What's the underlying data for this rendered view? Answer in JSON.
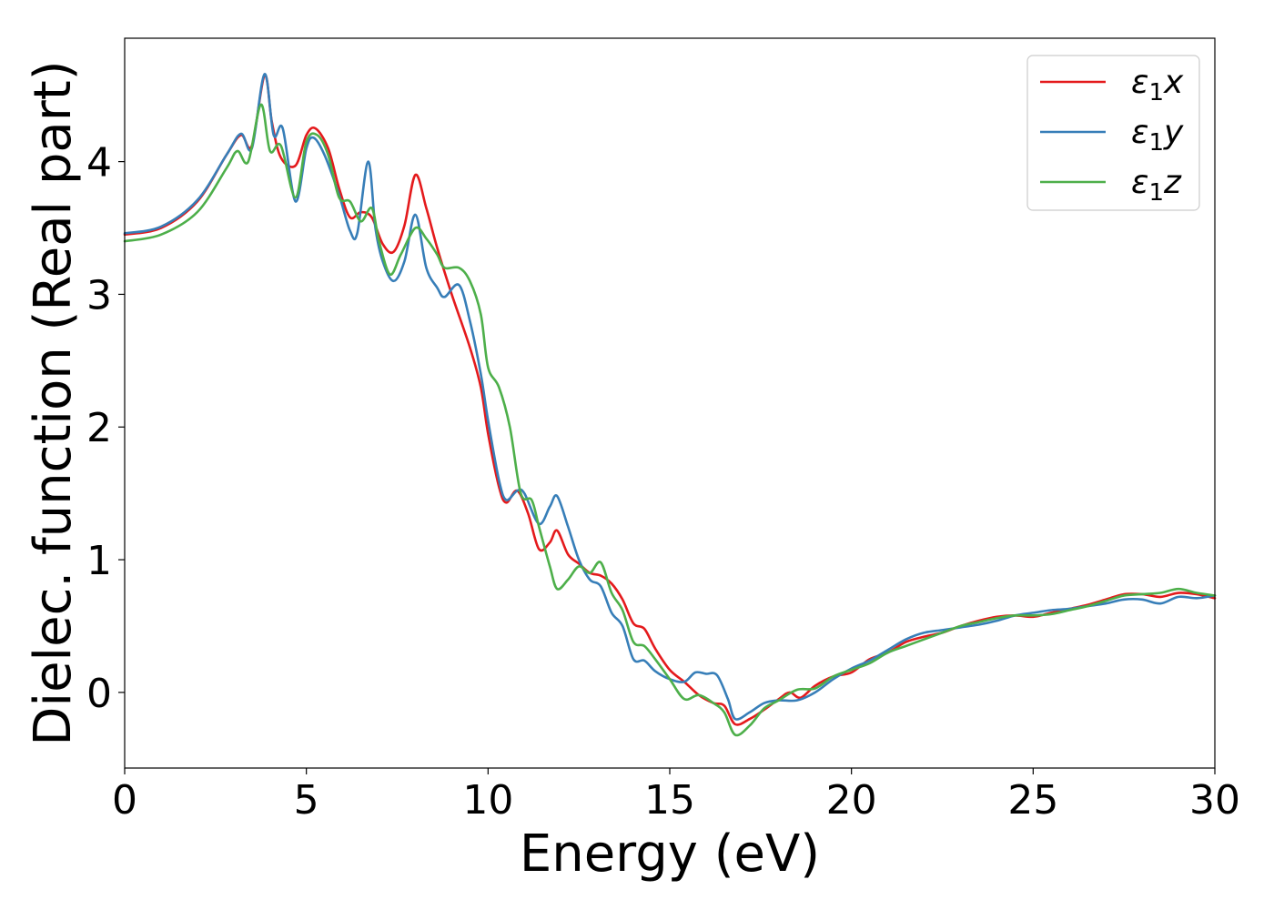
{
  "chart_data": {
    "type": "line",
    "xlabel": "Energy (eV)",
    "ylabel": "Dielec. function (Real part)",
    "xlim": [
      0,
      30
    ],
    "ylim": [
      -0.57,
      4.93
    ],
    "xticks": [
      0,
      5,
      10,
      15,
      20,
      25,
      30
    ],
    "yticks": [
      0,
      1,
      2,
      3,
      4
    ],
    "grid": false,
    "legend_position": "top-right",
    "series": [
      {
        "name": "ε₁x",
        "legend_main": "ε",
        "legend_sub": "1",
        "legend_var": "x",
        "color": "#e41a1c",
        "points": [
          [
            0,
            3.45
          ],
          [
            1,
            3.5
          ],
          [
            2,
            3.7
          ],
          [
            2.8,
            4.05
          ],
          [
            3.2,
            4.2
          ],
          [
            3.5,
            4.12
          ],
          [
            3.85,
            4.65
          ],
          [
            4.05,
            4.3
          ],
          [
            4.3,
            4.03
          ],
          [
            4.7,
            3.97
          ],
          [
            5.0,
            4.2
          ],
          [
            5.25,
            4.25
          ],
          [
            5.6,
            4.1
          ],
          [
            5.9,
            3.8
          ],
          [
            6.2,
            3.58
          ],
          [
            6.5,
            3.62
          ],
          [
            6.8,
            3.58
          ],
          [
            7.1,
            3.38
          ],
          [
            7.4,
            3.32
          ],
          [
            7.7,
            3.52
          ],
          [
            8.0,
            3.9
          ],
          [
            8.3,
            3.65
          ],
          [
            8.6,
            3.35
          ],
          [
            9.0,
            3.0
          ],
          [
            9.5,
            2.6
          ],
          [
            9.8,
            2.3
          ],
          [
            10.0,
            1.95
          ],
          [
            10.3,
            1.55
          ],
          [
            10.5,
            1.43
          ],
          [
            10.8,
            1.52
          ],
          [
            11.1,
            1.35
          ],
          [
            11.4,
            1.08
          ],
          [
            11.7,
            1.13
          ],
          [
            11.9,
            1.22
          ],
          [
            12.2,
            1.04
          ],
          [
            12.5,
            0.97
          ],
          [
            12.8,
            0.9
          ],
          [
            13.1,
            0.88
          ],
          [
            13.4,
            0.82
          ],
          [
            13.7,
            0.7
          ],
          [
            14.0,
            0.52
          ],
          [
            14.3,
            0.48
          ],
          [
            14.6,
            0.33
          ],
          [
            15.0,
            0.17
          ],
          [
            15.4,
            0.08
          ],
          [
            15.8,
            -0.02
          ],
          [
            16.2,
            -0.08
          ],
          [
            16.5,
            -0.1
          ],
          [
            16.8,
            -0.24
          ],
          [
            17.2,
            -0.2
          ],
          [
            17.6,
            -0.13
          ],
          [
            18.0,
            -0.05
          ],
          [
            18.3,
            0.0
          ],
          [
            18.6,
            -0.04
          ],
          [
            19.0,
            0.05
          ],
          [
            19.5,
            0.12
          ],
          [
            20.0,
            0.15
          ],
          [
            20.5,
            0.25
          ],
          [
            21.0,
            0.3
          ],
          [
            21.5,
            0.38
          ],
          [
            22.0,
            0.42
          ],
          [
            22.5,
            0.45
          ],
          [
            23.0,
            0.5
          ],
          [
            23.5,
            0.54
          ],
          [
            24.0,
            0.57
          ],
          [
            24.5,
            0.58
          ],
          [
            25.0,
            0.57
          ],
          [
            25.5,
            0.6
          ],
          [
            26.0,
            0.63
          ],
          [
            26.5,
            0.66
          ],
          [
            27.0,
            0.7
          ],
          [
            27.5,
            0.74
          ],
          [
            28.0,
            0.74
          ],
          [
            28.5,
            0.72
          ],
          [
            29.0,
            0.75
          ],
          [
            29.5,
            0.74
          ],
          [
            30.0,
            0.71
          ]
        ]
      },
      {
        "name": "ε₁y",
        "legend_main": "ε",
        "legend_sub": "1",
        "legend_var": "y",
        "color": "#377eb8",
        "points": [
          [
            0,
            3.46
          ],
          [
            1,
            3.51
          ],
          [
            2,
            3.71
          ],
          [
            2.8,
            4.05
          ],
          [
            3.2,
            4.21
          ],
          [
            3.5,
            4.1
          ],
          [
            3.85,
            4.66
          ],
          [
            4.1,
            4.2
          ],
          [
            4.35,
            4.25
          ],
          [
            4.7,
            3.7
          ],
          [
            5.0,
            4.1
          ],
          [
            5.2,
            4.18
          ],
          [
            5.5,
            4.05
          ],
          [
            5.9,
            3.75
          ],
          [
            6.2,
            3.48
          ],
          [
            6.4,
            3.46
          ],
          [
            6.7,
            4.0
          ],
          [
            6.9,
            3.5
          ],
          [
            7.1,
            3.25
          ],
          [
            7.4,
            3.1
          ],
          [
            7.7,
            3.25
          ],
          [
            8.0,
            3.6
          ],
          [
            8.3,
            3.2
          ],
          [
            8.6,
            3.05
          ],
          [
            8.8,
            2.98
          ],
          [
            9.2,
            3.07
          ],
          [
            9.5,
            2.8
          ],
          [
            9.8,
            2.4
          ],
          [
            10.0,
            2.05
          ],
          [
            10.3,
            1.6
          ],
          [
            10.5,
            1.45
          ],
          [
            10.8,
            1.52
          ],
          [
            11.0,
            1.5
          ],
          [
            11.4,
            1.27
          ],
          [
            11.7,
            1.4
          ],
          [
            11.9,
            1.48
          ],
          [
            12.2,
            1.25
          ],
          [
            12.5,
            1.0
          ],
          [
            12.8,
            0.85
          ],
          [
            13.1,
            0.8
          ],
          [
            13.4,
            0.6
          ],
          [
            13.7,
            0.5
          ],
          [
            14.0,
            0.25
          ],
          [
            14.3,
            0.24
          ],
          [
            14.6,
            0.16
          ],
          [
            15.0,
            0.1
          ],
          [
            15.4,
            0.08
          ],
          [
            15.7,
            0.15
          ],
          [
            16.0,
            0.14
          ],
          [
            16.3,
            0.13
          ],
          [
            16.6,
            -0.05
          ],
          [
            16.8,
            -0.2
          ],
          [
            17.2,
            -0.15
          ],
          [
            17.6,
            -0.08
          ],
          [
            18.0,
            -0.06
          ],
          [
            18.5,
            -0.06
          ],
          [
            19.0,
            0.0
          ],
          [
            19.5,
            0.1
          ],
          [
            20.0,
            0.18
          ],
          [
            20.5,
            0.24
          ],
          [
            21.0,
            0.32
          ],
          [
            21.5,
            0.4
          ],
          [
            22.0,
            0.45
          ],
          [
            22.5,
            0.47
          ],
          [
            23.0,
            0.49
          ],
          [
            23.5,
            0.51
          ],
          [
            24.0,
            0.54
          ],
          [
            24.5,
            0.58
          ],
          [
            25.0,
            0.6
          ],
          [
            25.5,
            0.62
          ],
          [
            26.0,
            0.63
          ],
          [
            26.5,
            0.65
          ],
          [
            27.0,
            0.67
          ],
          [
            27.5,
            0.7
          ],
          [
            28.0,
            0.7
          ],
          [
            28.5,
            0.67
          ],
          [
            29.0,
            0.72
          ],
          [
            29.5,
            0.71
          ],
          [
            30.0,
            0.73
          ]
        ]
      },
      {
        "name": "ε₁z",
        "legend_main": "ε",
        "legend_sub": "1",
        "legend_var": "z",
        "color": "#4daf4a",
        "points": [
          [
            0,
            3.4
          ],
          [
            1,
            3.45
          ],
          [
            2,
            3.62
          ],
          [
            2.8,
            3.95
          ],
          [
            3.1,
            4.08
          ],
          [
            3.4,
            4.0
          ],
          [
            3.75,
            4.43
          ],
          [
            4.0,
            4.08
          ],
          [
            4.3,
            4.12
          ],
          [
            4.7,
            3.73
          ],
          [
            5.0,
            4.15
          ],
          [
            5.3,
            4.2
          ],
          [
            5.6,
            4.05
          ],
          [
            5.9,
            3.73
          ],
          [
            6.2,
            3.7
          ],
          [
            6.5,
            3.55
          ],
          [
            6.8,
            3.65
          ],
          [
            7.0,
            3.4
          ],
          [
            7.3,
            3.15
          ],
          [
            7.6,
            3.3
          ],
          [
            8.0,
            3.5
          ],
          [
            8.3,
            3.42
          ],
          [
            8.6,
            3.3
          ],
          [
            8.8,
            3.2
          ],
          [
            9.2,
            3.2
          ],
          [
            9.5,
            3.1
          ],
          [
            9.8,
            2.85
          ],
          [
            10.0,
            2.45
          ],
          [
            10.3,
            2.3
          ],
          [
            10.6,
            2.0
          ],
          [
            10.9,
            1.5
          ],
          [
            11.2,
            1.45
          ],
          [
            11.4,
            1.25
          ],
          [
            11.7,
            0.95
          ],
          [
            11.9,
            0.78
          ],
          [
            12.2,
            0.85
          ],
          [
            12.5,
            0.95
          ],
          [
            12.8,
            0.9
          ],
          [
            13.1,
            0.98
          ],
          [
            13.4,
            0.75
          ],
          [
            13.7,
            0.62
          ],
          [
            14.0,
            0.38
          ],
          [
            14.3,
            0.35
          ],
          [
            14.6,
            0.25
          ],
          [
            15.0,
            0.1
          ],
          [
            15.4,
            -0.05
          ],
          [
            15.8,
            -0.02
          ],
          [
            16.2,
            -0.08
          ],
          [
            16.5,
            -0.15
          ],
          [
            16.8,
            -0.32
          ],
          [
            17.2,
            -0.25
          ],
          [
            17.6,
            -0.12
          ],
          [
            18.0,
            -0.06
          ],
          [
            18.5,
            0.02
          ],
          [
            19.0,
            0.03
          ],
          [
            19.5,
            0.12
          ],
          [
            20.0,
            0.17
          ],
          [
            20.5,
            0.22
          ],
          [
            21.0,
            0.3
          ],
          [
            21.5,
            0.35
          ],
          [
            22.0,
            0.4
          ],
          [
            22.5,
            0.45
          ],
          [
            23.0,
            0.5
          ],
          [
            23.5,
            0.53
          ],
          [
            24.0,
            0.56
          ],
          [
            24.5,
            0.58
          ],
          [
            25.0,
            0.58
          ],
          [
            25.5,
            0.59
          ],
          [
            26.0,
            0.62
          ],
          [
            26.5,
            0.65
          ],
          [
            27.0,
            0.69
          ],
          [
            27.5,
            0.73
          ],
          [
            28.0,
            0.74
          ],
          [
            28.5,
            0.75
          ],
          [
            29.0,
            0.78
          ],
          [
            29.5,
            0.75
          ],
          [
            30.0,
            0.73
          ]
        ]
      }
    ]
  }
}
